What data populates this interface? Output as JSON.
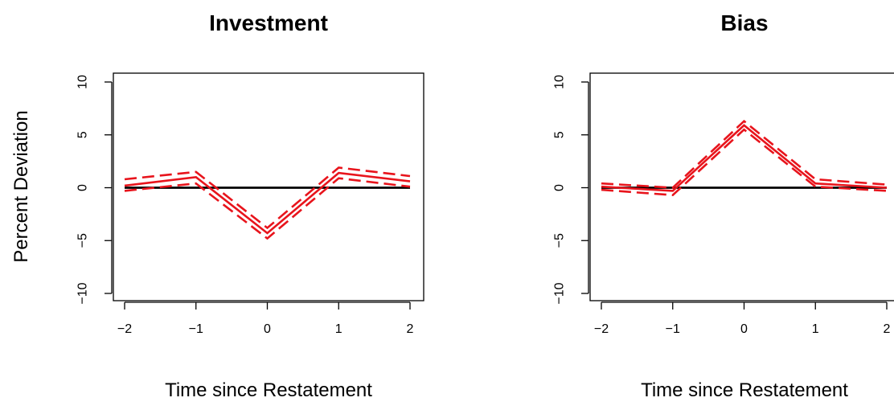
{
  "chart_data": [
    {
      "type": "line",
      "title": "Investment",
      "xlabel": "Time since Restatement",
      "ylabel": "Percent Deviation",
      "x": [
        -2,
        -1,
        0,
        1,
        2
      ],
      "xticks": [
        "−2",
        "−1",
        "0",
        "1",
        "2"
      ],
      "yticks": [
        "−10",
        "−5",
        "0",
        "5",
        "10"
      ],
      "ylim": [
        -10,
        10
      ],
      "grid": false,
      "series": [
        {
          "role": "estimate",
          "style": "solid",
          "color": "#e8141c",
          "values": [
            0.2,
            1.0,
            -4.3,
            1.4,
            0.6
          ]
        },
        {
          "role": "upper",
          "style": "dashed",
          "color": "#e8141c",
          "values": [
            0.8,
            1.5,
            -3.8,
            1.9,
            1.1
          ]
        },
        {
          "role": "lower",
          "style": "dashed",
          "color": "#e8141c",
          "values": [
            -0.3,
            0.4,
            -4.8,
            0.9,
            0.1
          ]
        },
        {
          "role": "zero",
          "style": "solid",
          "color": "#000000",
          "values": [
            0,
            0,
            0,
            0,
            0
          ]
        }
      ]
    },
    {
      "type": "line",
      "title": "Bias",
      "xlabel": "Time since Restatement",
      "ylabel": "",
      "x": [
        -2,
        -1,
        0,
        1,
        2
      ],
      "xticks": [
        "−2",
        "−1",
        "0",
        "1",
        "2"
      ],
      "yticks": [
        "−10",
        "−5",
        "0",
        "5",
        "10"
      ],
      "ylim": [
        -10,
        10
      ],
      "grid": false,
      "series": [
        {
          "role": "estimate",
          "style": "solid",
          "color": "#e8141c",
          "values": [
            0.1,
            -0.3,
            5.9,
            0.4,
            0.0
          ]
        },
        {
          "role": "upper",
          "style": "dashed",
          "color": "#e8141c",
          "values": [
            0.4,
            0.0,
            6.3,
            0.8,
            0.3
          ]
        },
        {
          "role": "lower",
          "style": "dashed",
          "color": "#e8141c",
          "values": [
            -0.2,
            -0.7,
            5.5,
            0.1,
            -0.3
          ]
        },
        {
          "role": "zero",
          "style": "solid",
          "color": "#000000",
          "values": [
            0,
            0,
            0,
            0,
            0
          ]
        }
      ]
    }
  ]
}
